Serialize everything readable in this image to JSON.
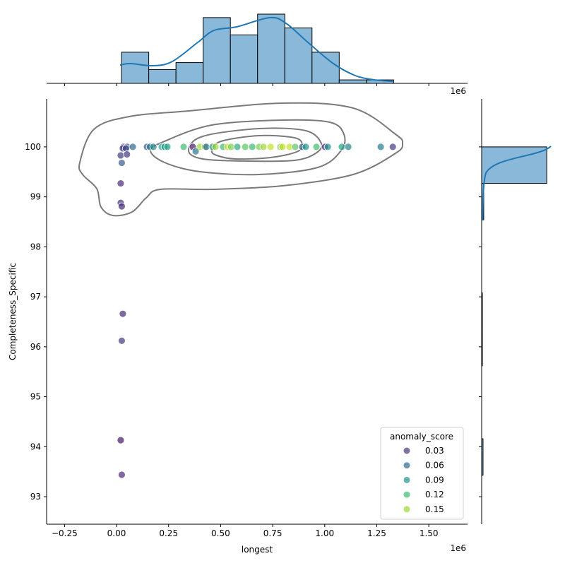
{
  "chart_data": {
    "type": "scatter",
    "xlabel": "longest",
    "ylabel": "Completeness_Specific",
    "x_offset_label": "1e6",
    "xlim": [
      -0.336,
      1.686
    ],
    "ylim": [
      92.45,
      100.96
    ],
    "x_ticks": [
      "−0.25",
      "0.00",
      "0.25",
      "0.50",
      "0.75",
      "1.00",
      "1.25",
      "1.50"
    ],
    "x_tick_values": [
      -0.25,
      0,
      0.25,
      0.5,
      0.75,
      1.0,
      1.25,
      1.5
    ],
    "y_ticks": [
      "93",
      "94",
      "95",
      "96",
      "97",
      "98",
      "99",
      "100"
    ],
    "y_tick_values": [
      93,
      94,
      95,
      96,
      97,
      98,
      99,
      100
    ],
    "grid": false,
    "legend": {
      "title": "anomaly_score",
      "placement": "lower-right",
      "entries": [
        "0.03",
        "0.06",
        "0.09",
        "0.12",
        "0.15"
      ],
      "values": [
        0.03,
        0.06,
        0.09,
        0.12,
        0.15
      ]
    },
    "hue_range": [
      0.0,
      0.175
    ],
    "colormap": "viridis",
    "points": [
      [
        0.034,
        100,
        0.03
      ],
      [
        0.051,
        100,
        0.04
      ],
      [
        0.078,
        100,
        0.06
      ],
      [
        0.146,
        100,
        0.05
      ],
      [
        0.16,
        100,
        0.07
      ],
      [
        0.177,
        100,
        0.08
      ],
      [
        0.217,
        100,
        0.1
      ],
      [
        0.231,
        100,
        0.09
      ],
      [
        0.244,
        100,
        0.1
      ],
      [
        0.322,
        100,
        0.12
      ],
      [
        0.366,
        100,
        0.01
      ],
      [
        0.4,
        100,
        0.15
      ],
      [
        0.424,
        100,
        0.14
      ],
      [
        0.431,
        100,
        0.06
      ],
      [
        0.461,
        100,
        0.09
      ],
      [
        0.475,
        100,
        0.15
      ],
      [
        0.512,
        100,
        0.12
      ],
      [
        0.533,
        100,
        0.16
      ],
      [
        0.55,
        100,
        0.14
      ],
      [
        0.58,
        100,
        0.11
      ],
      [
        0.618,
        100,
        0.13
      ],
      [
        0.652,
        100,
        0.12
      ],
      [
        0.685,
        100,
        0.14
      ],
      [
        0.706,
        100,
        0.15
      ],
      [
        0.74,
        100,
        0.16
      ],
      [
        0.787,
        100,
        0.14
      ],
      [
        0.797,
        100,
        0.16
      ],
      [
        0.831,
        100,
        0.16
      ],
      [
        0.858,
        100,
        0.13
      ],
      [
        0.892,
        100,
        0.05
      ],
      [
        0.909,
        100,
        0.09
      ],
      [
        0.96,
        100,
        0.12
      ],
      [
        1.001,
        100,
        0.02
      ],
      [
        1.015,
        100,
        0.09
      ],
      [
        1.082,
        100,
        0.1
      ],
      [
        1.113,
        100,
        0.08
      ],
      [
        1.269,
        100,
        0.07
      ],
      [
        1.327,
        100,
        0.03
      ],
      [
        0.03,
        99.97,
        0.03
      ],
      [
        0.045,
        99.97,
        0.04
      ],
      [
        0.02,
        99.83,
        0.03
      ],
      [
        0.05,
        99.85,
        0.03
      ],
      [
        0.025,
        99.68,
        0.05
      ],
      [
        0.38,
        99.91,
        0.07
      ],
      [
        0.02,
        99.27,
        0.02
      ],
      [
        0.02,
        98.88,
        0.03
      ],
      [
        0.025,
        98.81,
        0.02
      ],
      [
        0.03,
        96.66,
        0.02
      ],
      [
        0.025,
        96.12,
        0.03
      ],
      [
        0.02,
        94.13,
        0.01
      ],
      [
        0.025,
        93.44,
        0.02
      ]
    ],
    "top_histogram": {
      "bin_start": 0.024,
      "bin_width": 0.1307,
      "counts": [
        9,
        4,
        6,
        19,
        14,
        20,
        16,
        9,
        1,
        1
      ],
      "color": "#8ab8d9",
      "kde_color": "#1f77b4"
    },
    "right_histogram": {
      "bin_start": 93.43,
      "bin_width": 0.73,
      "counts": [
        2,
        0,
        0,
        1,
        1,
        0,
        0,
        3,
        95
      ],
      "color": "#8ab8d9",
      "kde_color": "#1f77b4"
    },
    "kde_contour_color": "#7a7a7a"
  }
}
